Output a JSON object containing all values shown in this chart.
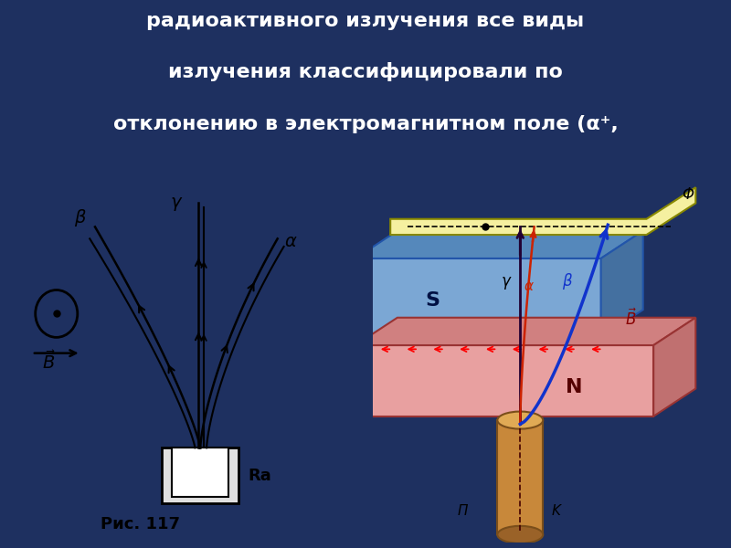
{
  "bg_color": "#1e3060",
  "title_lines": [
    "радиоактивного излучения все виды",
    "излучения классифицировали по",
    "отклонению в электромагнитном поле (α⁺,"
  ],
  "title_color": "#ffffff",
  "title_fontsize": 16,
  "left_panel_bg": "#f5f5f5",
  "right_panel_bg": "#fae8c8",
  "fig117_label": "Рис. 117",
  "ra_label": "Ra",
  "alpha_label": "α",
  "beta_label": "β",
  "gamma_label": "γ",
  "S_label": "S",
  "N_label": "N",
  "Phi_label": "Φ",
  "Pi_label": "П",
  "K_label": "K"
}
